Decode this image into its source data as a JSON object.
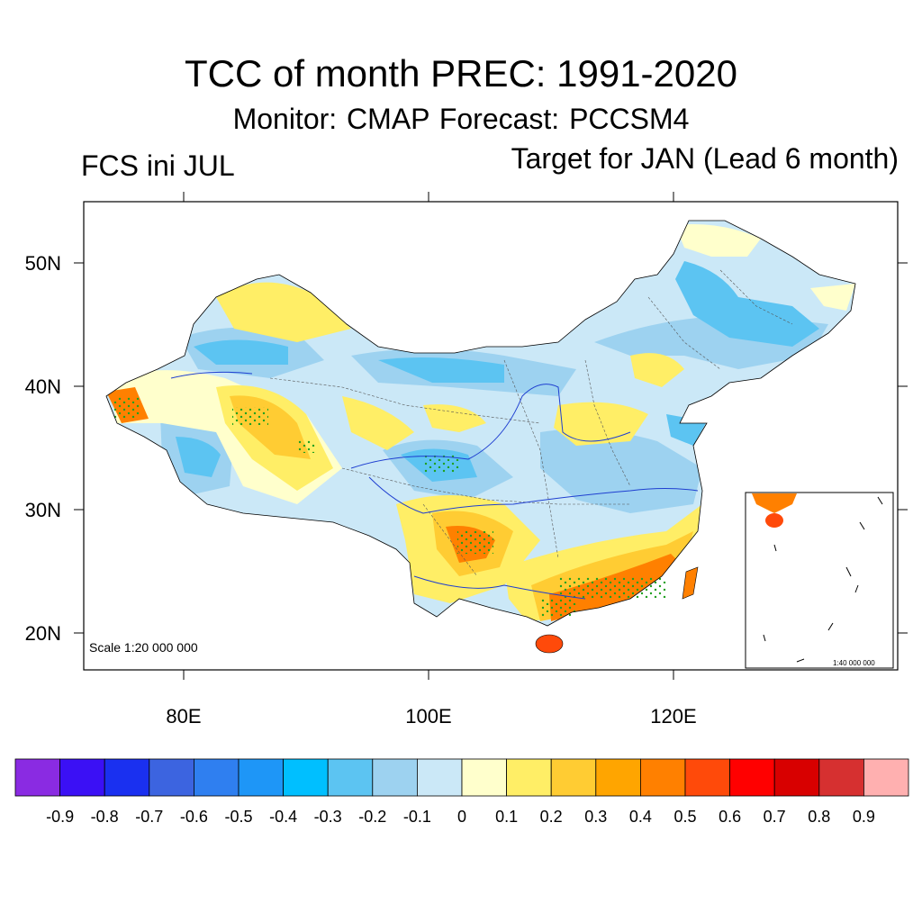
{
  "title": "TCC of month PREC: 1991-2020",
  "subtitle": "Monitor: CMAP   Forecast: PCCSM4",
  "left_label": "FCS ini JUL",
  "right_label": "Target for JAN (Lead 6 month)",
  "map": {
    "lat_ticks": [
      "50N",
      "40N",
      "30N",
      "20N"
    ],
    "lon_ticks": [
      "80E",
      "100E",
      "120E"
    ],
    "scale_label": "Scale 1:20 000 000",
    "inset_scale_label": "1:40 000 000"
  },
  "colorbar": {
    "colors": [
      "#8a2be2",
      "#3b10f5",
      "#1a30f0",
      "#3c64e0",
      "#2f7ff0",
      "#1e96f7",
      "#00bfff",
      "#5cc4f2",
      "#9dd2f0",
      "#cbe8f7",
      "#ffffcc",
      "#ffee66",
      "#ffcc33",
      "#ffa500",
      "#ff8000",
      "#ff4a0a",
      "#ff0000",
      "#d80000",
      "#d63030",
      "#ffb0b0"
    ],
    "labels": [
      "-0.9",
      "-0.8",
      "-0.7",
      "-0.6",
      "-0.5",
      "-0.4",
      "-0.3",
      "-0.2",
      "-0.1",
      "0",
      "0.1",
      "0.2",
      "0.3",
      "0.4",
      "0.5",
      "0.6",
      "0.7",
      "0.8",
      "0.9"
    ]
  }
}
